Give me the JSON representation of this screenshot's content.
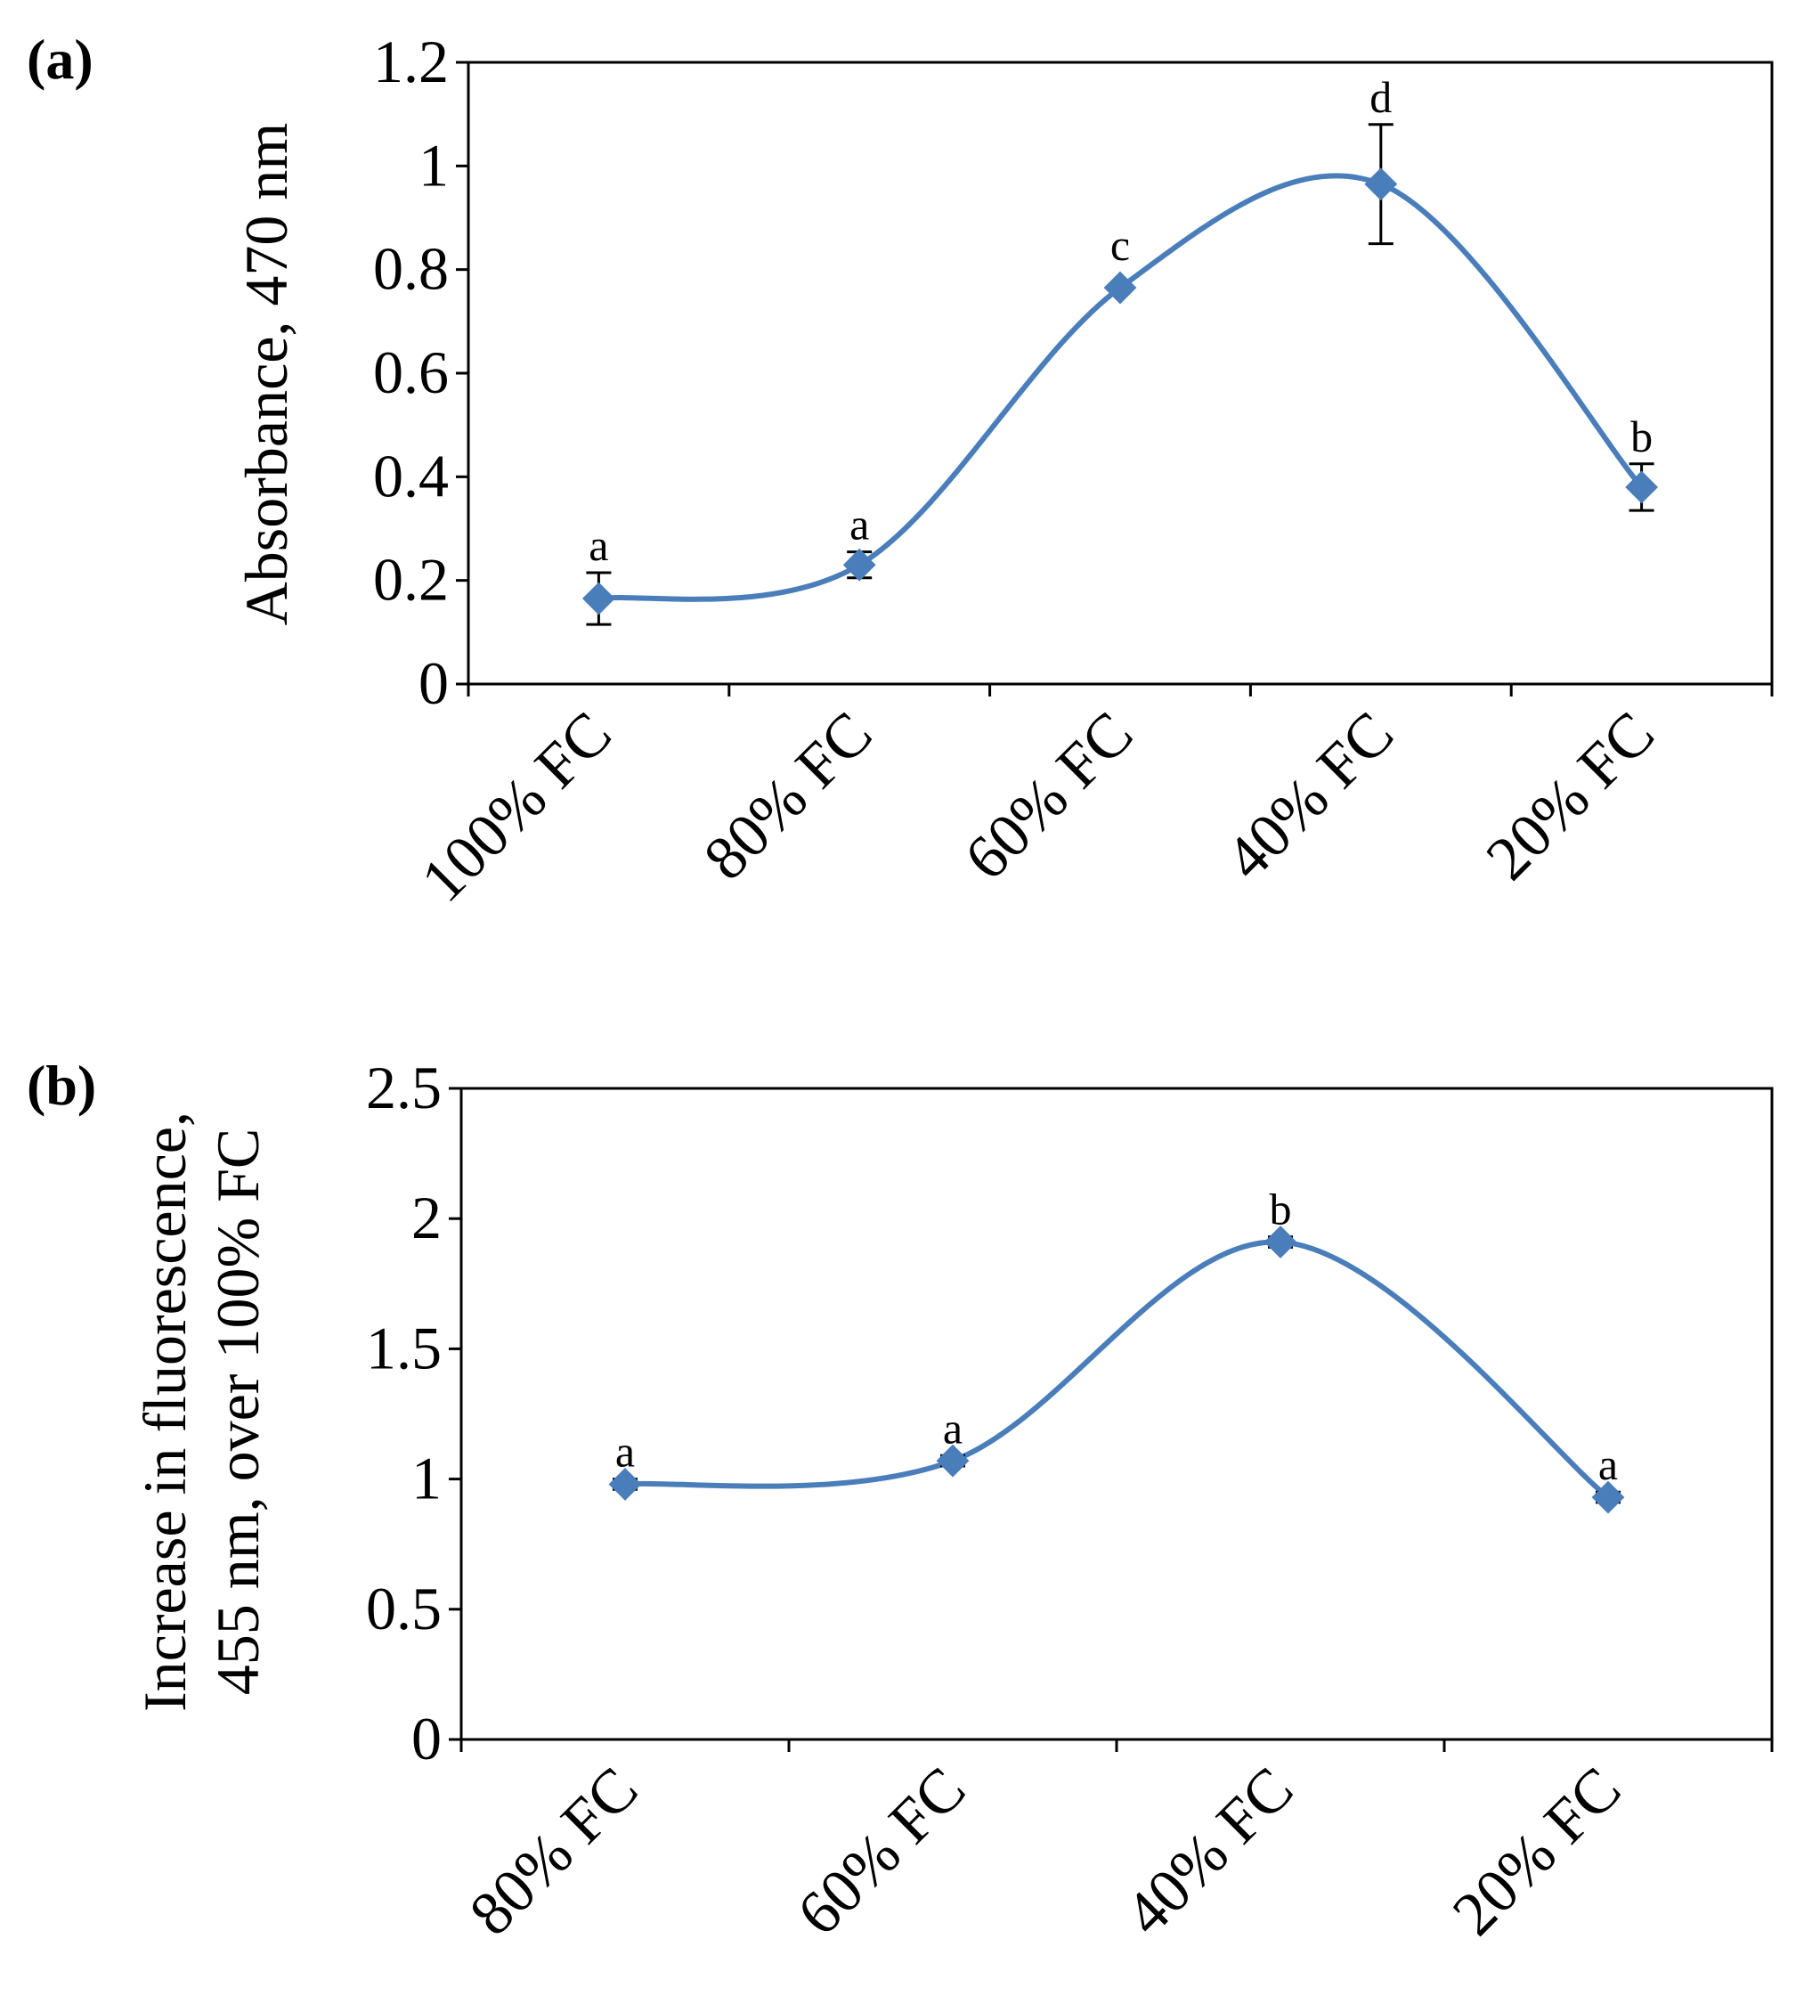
{
  "series_color": "#4a7ebb",
  "chart_data": [
    {
      "panel_label": "(a)",
      "type": "line",
      "smooth": true,
      "categories": [
        "100% FC",
        "80% FC",
        "60% FC",
        "40% FC",
        "20% FC"
      ],
      "values": [
        0.165,
        0.23,
        0.765,
        0.965,
        0.38
      ],
      "errors": [
        0.05,
        0.025,
        0.0,
        0.115,
        0.045
      ],
      "significance": [
        "a",
        "a",
        "c",
        "d",
        "b"
      ],
      "ylabel": "Absorbance, 470  nm",
      "xlabel": "",
      "ylim": [
        0,
        1.2
      ],
      "yticks": [
        0,
        0.2,
        0.4,
        0.6,
        0.8,
        1,
        1.2
      ],
      "ytick_labels": [
        "0",
        "0.2",
        "0.4",
        "0.6",
        "0.8",
        "1",
        "1.2"
      ],
      "marker": "diamond",
      "grid": false,
      "legend": "none"
    },
    {
      "panel_label": "(b)",
      "type": "line",
      "smooth": true,
      "categories": [
        "80% FC",
        "60% FC",
        "40% FC",
        "20% FC"
      ],
      "values": [
        0.98,
        1.07,
        1.91,
        0.93
      ],
      "errors": [
        0.02,
        0.02,
        0.02,
        0.02
      ],
      "significance": [
        "a",
        "a",
        "b",
        "a"
      ],
      "ylabel_lines": [
        "Increase in fluorescence,",
        "455 nm, over 100%  FC"
      ],
      "xlabel": "",
      "ylim": [
        0,
        2.5
      ],
      "yticks": [
        0,
        0.5,
        1,
        1.5,
        2,
        2.5
      ],
      "ytick_labels": [
        "0",
        "0.5",
        "1",
        "1.5",
        "2",
        "2.5"
      ],
      "marker": "diamond",
      "grid": false,
      "legend": "none"
    }
  ]
}
